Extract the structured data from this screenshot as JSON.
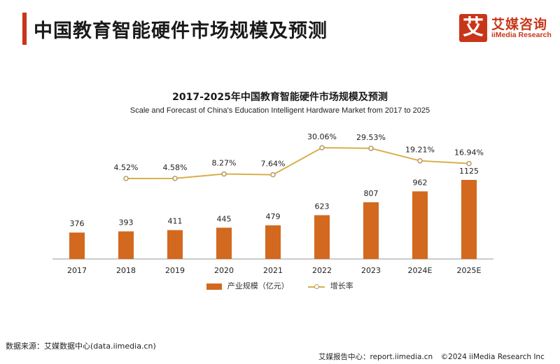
{
  "header": {
    "title": "中国教育智能硬件市场规模及预测",
    "logo_mark": "艾",
    "logo_cn": "艾媒咨询",
    "logo_en": "iiMedia Research"
  },
  "chart_data": {
    "type": "bar",
    "title": "2017-2025年中国教育智能硬件市场规模及预测",
    "subtitle": "Scale and Forecast of China's Education Intelligent Hardware Market from 2017 to 2025",
    "categories": [
      "2017",
      "2018",
      "2019",
      "2020",
      "2021",
      "2022",
      "2023",
      "2024E",
      "2025E"
    ],
    "series": [
      {
        "name": "产业规模（亿元）",
        "type": "bar",
        "values": [
          376,
          393,
          411,
          445,
          479,
          623,
          807,
          962,
          1125
        ],
        "labels": [
          "376",
          "393",
          "411",
          "445",
          "479",
          "623",
          "807",
          "962",
          "1125"
        ],
        "color": "#d2691e"
      },
      {
        "name": "增长率",
        "type": "line",
        "values": [
          null,
          4.52,
          4.58,
          8.27,
          7.64,
          30.06,
          29.53,
          19.21,
          16.94
        ],
        "labels": [
          "",
          "4.52%",
          "4.58%",
          "8.27%",
          "7.64%",
          "30.06%",
          "29.53%",
          "19.21%",
          "16.94%"
        ],
        "color": "#d8b04a"
      }
    ],
    "legend_position": "bottom",
    "grid": false
  },
  "source": "数据来源：艾媒数据中心(data.iimedia.cn)",
  "footer": {
    "report": "艾媒报告中心：report.iimedia.cn",
    "copyright": "©2024  iiMedia Research  Inc"
  }
}
